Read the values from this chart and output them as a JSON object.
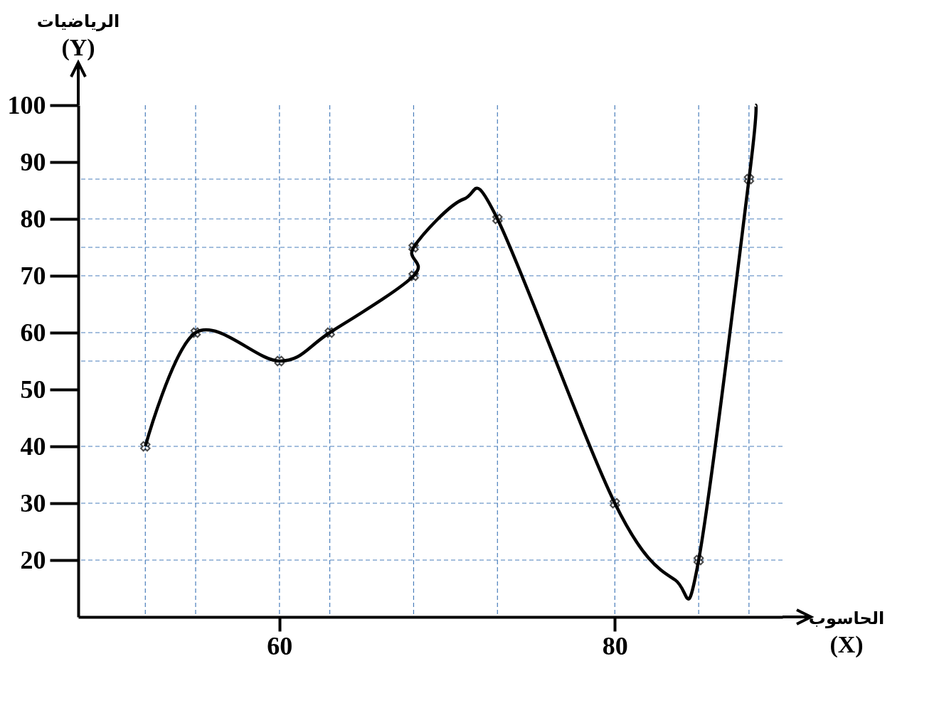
{
  "chart_data": {
    "type": "line",
    "xlabel": "الحاسوب\n(X)",
    "ylabel": "الرياضيات\n(Y)",
    "xlim": [
      48,
      90
    ],
    "xticks": [
      60,
      80
    ],
    "ylim": [
      10,
      100
    ],
    "yticks": [
      20,
      30,
      40,
      50,
      60,
      70,
      80,
      90,
      100
    ],
    "series": [
      {
        "type": "line",
        "color": "#000000",
        "marker": "none",
        "x": [
          52,
          55,
          60,
          63,
          68,
          68,
          71,
          73,
          80,
          83.6,
          85,
          88,
          88.4
        ],
        "values": [
          40,
          60,
          55,
          60,
          70,
          75,
          83.5,
          80,
          30,
          16.5,
          20,
          87,
          100
        ]
      },
      {
        "type": "scatter",
        "color": "#000000",
        "marker": "cross",
        "x": [
          52,
          55,
          60,
          63,
          68,
          68,
          73,
          80,
          85,
          88
        ],
        "values": [
          40,
          60,
          55,
          60,
          70,
          75,
          80,
          30,
          20,
          87
        ]
      }
    ],
    "ref_lines": [
      {
        "axis": "y",
        "value": 20,
        "color": "#4a7ebb",
        "line_style": "dashed"
      },
      {
        "axis": "y",
        "value": 30,
        "color": "#4a7ebb",
        "line_style": "dashed"
      },
      {
        "axis": "y",
        "value": 40,
        "color": "#4a7ebb",
        "line_style": "dashed"
      },
      {
        "axis": "y",
        "value": 55,
        "color": "#4a7ebb",
        "line_style": "dashed"
      },
      {
        "axis": "y",
        "value": 60,
        "color": "#4a7ebb",
        "line_style": "dashed"
      },
      {
        "axis": "y",
        "value": 70,
        "color": "#4a7ebb",
        "line_style": "dashed"
      },
      {
        "axis": "y",
        "value": 75,
        "color": "#4a7ebb",
        "line_style": "dashed"
      },
      {
        "axis": "y",
        "value": 80,
        "color": "#4a7ebb",
        "line_style": "dashed"
      },
      {
        "axis": "y",
        "value": 87,
        "color": "#4a7ebb",
        "line_style": "dashed"
      },
      {
        "axis": "x",
        "value": 52,
        "color": "#4a7ebb",
        "line_style": "dashed"
      },
      {
        "axis": "x",
        "value": 55,
        "color": "#4a7ebb",
        "line_style": "dashed"
      },
      {
        "axis": "x",
        "value": 60,
        "color": "#4a7ebb",
        "line_style": "dashed"
      },
      {
        "axis": "x",
        "value": 63,
        "color": "#4a7ebb",
        "line_style": "dashed"
      },
      {
        "axis": "x",
        "value": 68,
        "color": "#4a7ebb",
        "line_style": "dashed"
      },
      {
        "axis": "x",
        "value": 73,
        "color": "#4a7ebb",
        "line_style": "dashed"
      },
      {
        "axis": "x",
        "value": 80,
        "color": "#4a7ebb",
        "line_style": "dashed"
      },
      {
        "axis": "x",
        "value": 85,
        "color": "#4a7ebb",
        "line_style": "dashed"
      },
      {
        "axis": "x",
        "value": 88,
        "color": "#4a7ebb",
        "line_style": "dashed"
      }
    ]
  }
}
